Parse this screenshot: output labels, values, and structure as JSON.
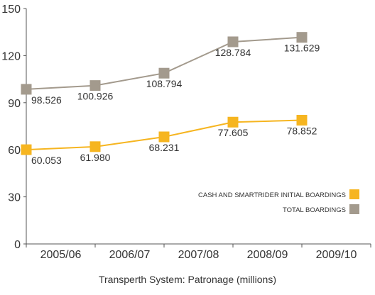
{
  "chart_data": {
    "type": "line",
    "title": "Transperth System: Patronage (millions)",
    "categories": [
      "2005/06",
      "2006/07",
      "2007/08",
      "2008/09",
      "2009/10"
    ],
    "ylim": [
      0,
      150
    ],
    "yticks": [
      0,
      30,
      60,
      90,
      120,
      150
    ],
    "grid": false,
    "legend_position": "bottom-right",
    "series": [
      {
        "name": "CASH AND SMARTRIDER INITIAL BOARDINGS",
        "values": [
          60.053,
          61.98,
          68.231,
          77.605,
          78.852
        ],
        "labels": [
          "60.053",
          "61.980",
          "68.231",
          "77.605",
          "78.852"
        ],
        "color": "#f6b520"
      },
      {
        "name": "TOTAL BOARDINGS",
        "values": [
          98.526,
          100.926,
          108.794,
          128.784,
          131.629
        ],
        "labels": [
          "98.526",
          "100.926",
          "108.794",
          "128.784",
          "131.629"
        ],
        "color": "#a39a8d"
      }
    ]
  }
}
